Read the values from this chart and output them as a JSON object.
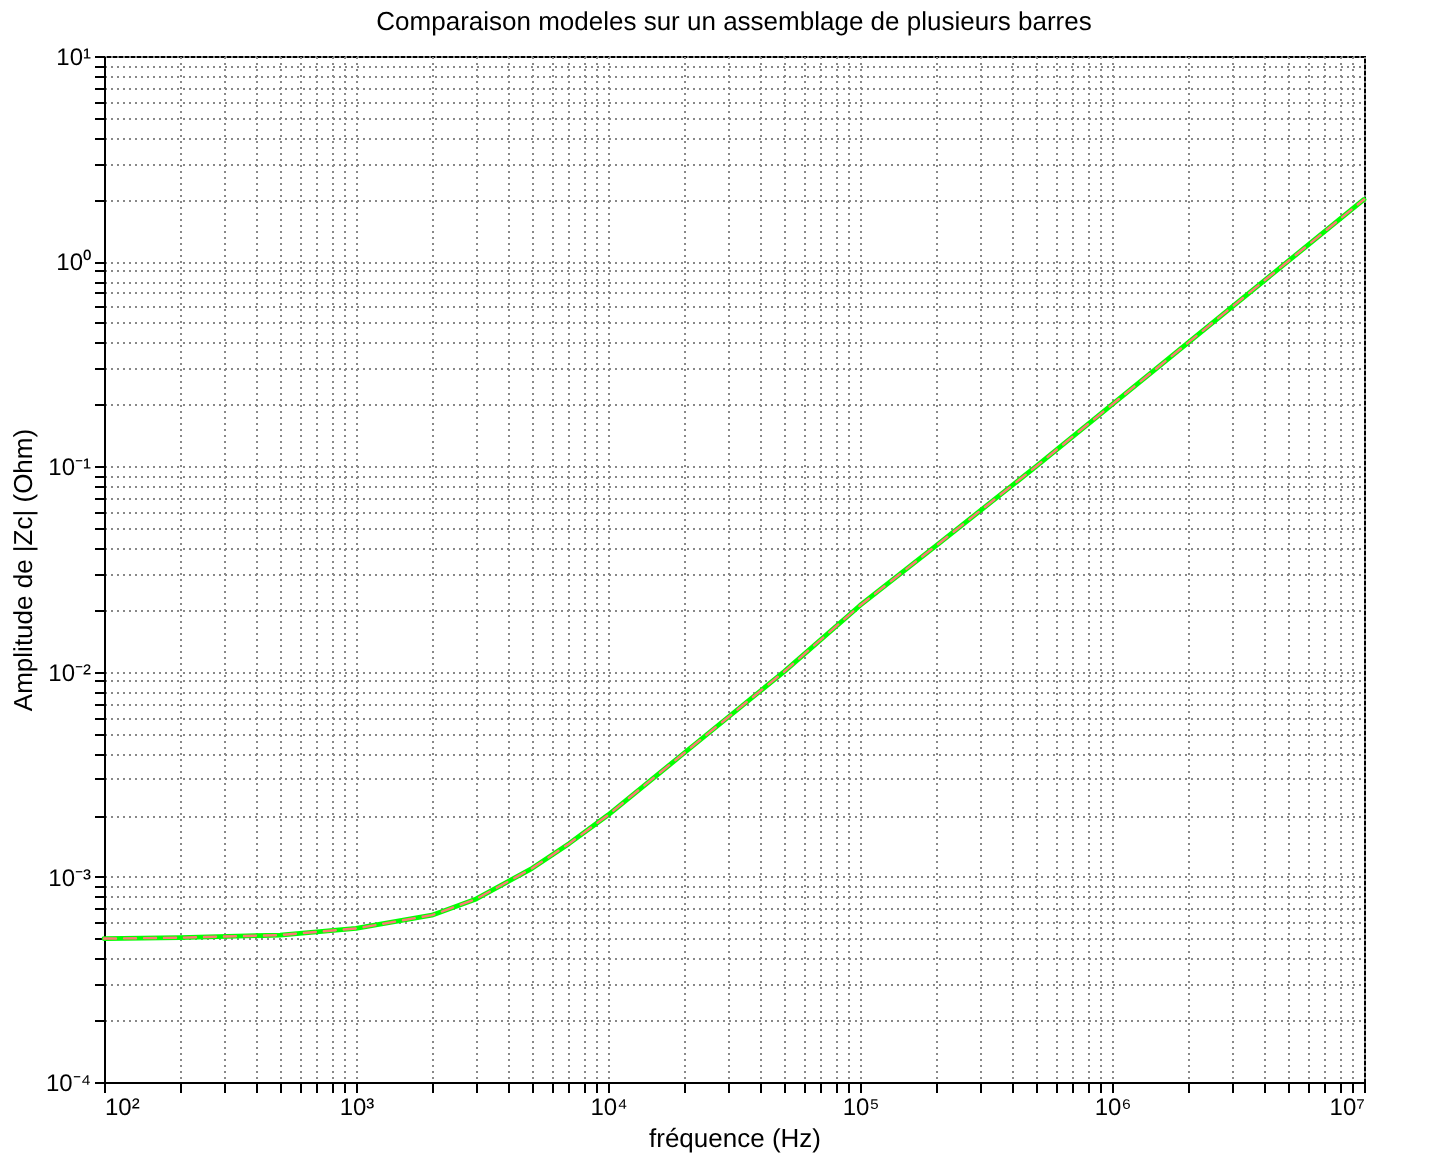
{
  "chart_data": {
    "type": "line",
    "title": "Comparaison modeles sur un assemblage de plusieurs barres",
    "xlabel": "fréquence (Hz)",
    "ylabel": "Amplitude de |Zc| (Ohm)",
    "log": "xy",
    "grid": true,
    "x": [
      100,
      200,
      500,
      1000,
      2000,
      3000,
      5000,
      7000,
      10000,
      20000,
      50000,
      100000,
      200000,
      500000,
      1000000,
      2000000,
      5000000,
      10000000
    ],
    "series": [
      {
        "color": "#00ff00",
        "line_style": "solid",
        "values": [
          0.0005,
          0.000505,
          0.00052,
          0.00056,
          0.00065,
          0.00078,
          0.0011,
          0.00145,
          0.002,
          0.004,
          0.01,
          0.021,
          0.041,
          0.1,
          0.2,
          0.4,
          1,
          2
        ]
      },
      {
        "color": "#ff7777",
        "line_style": "dashed",
        "values": [
          0.0005,
          0.000505,
          0.00052,
          0.00056,
          0.00065,
          0.00078,
          0.0011,
          0.00145,
          0.002,
          0.004,
          0.01,
          0.021,
          0.041,
          0.1,
          0.2,
          0.4,
          1,
          2
        ]
      }
    ],
    "xlim": [
      100,
      10000000
    ],
    "xticks": [
      {
        "value": 100,
        "label": "10²"
      },
      {
        "value": 200,
        "label": null
      },
      {
        "value": 300,
        "label": null
      },
      {
        "value": 400,
        "label": null
      },
      {
        "value": 500,
        "label": null
      },
      {
        "value": 600,
        "label": null
      },
      {
        "value": 700,
        "label": null
      },
      {
        "value": 800,
        "label": null
      },
      {
        "value": 900,
        "label": null
      },
      {
        "value": 1000,
        "label": "10³"
      },
      {
        "value": 2000,
        "label": null
      },
      {
        "value": 3000,
        "label": null
      },
      {
        "value": 4000,
        "label": null
      },
      {
        "value": 5000,
        "label": null
      },
      {
        "value": 6000,
        "label": null
      },
      {
        "value": 7000,
        "label": null
      },
      {
        "value": 8000,
        "label": null
      },
      {
        "value": 9000,
        "label": null
      },
      {
        "value": 10000,
        "label": "10⁴"
      },
      {
        "value": 20000,
        "label": null
      },
      {
        "value": 30000,
        "label": null
      },
      {
        "value": 40000,
        "label": null
      },
      {
        "value": 50000,
        "label": null
      },
      {
        "value": 60000,
        "label": null
      },
      {
        "value": 70000,
        "label": null
      },
      {
        "value": 80000,
        "label": null
      },
      {
        "value": 90000,
        "label": null
      },
      {
        "value": 100000,
        "label": "10⁵"
      },
      {
        "value": 200000,
        "label": null
      },
      {
        "value": 300000,
        "label": null
      },
      {
        "value": 400000,
        "label": null
      },
      {
        "value": 500000,
        "label": null
      },
      {
        "value": 600000,
        "label": null
      },
      {
        "value": 700000,
        "label": null
      },
      {
        "value": 800000,
        "label": null
      },
      {
        "value": 900000,
        "label": null
      },
      {
        "value": 1000000,
        "label": "10⁶"
      },
      {
        "value": 2000000,
        "label": null
      },
      {
        "value": 3000000,
        "label": null
      },
      {
        "value": 4000000,
        "label": null
      },
      {
        "value": 5000000,
        "label": null
      },
      {
        "value": 6000000,
        "label": null
      },
      {
        "value": 7000000,
        "label": null
      },
      {
        "value": 8000000,
        "label": null
      },
      {
        "value": 9000000,
        "label": null
      },
      {
        "value": 10000000,
        "label": "10⁷"
      }
    ],
    "ylim": [
      0.0001,
      10
    ],
    "yticks": [
      {
        "value": 0.0001,
        "label": "10⁻⁴"
      },
      {
        "value": 0.0002,
        "label": null
      },
      {
        "value": 0.0003,
        "label": null
      },
      {
        "value": 0.0004,
        "label": null
      },
      {
        "value": 0.0005,
        "label": null
      },
      {
        "value": 0.0006,
        "label": null
      },
      {
        "value": 0.0007,
        "label": null
      },
      {
        "value": 0.0008,
        "label": null
      },
      {
        "value": 0.0009,
        "label": null
      },
      {
        "value": 0.001,
        "label": "10⁻³"
      },
      {
        "value": 0.002,
        "label": null
      },
      {
        "value": 0.003,
        "label": null
      },
      {
        "value": 0.004,
        "label": null
      },
      {
        "value": 0.005,
        "label": null
      },
      {
        "value": 0.006,
        "label": null
      },
      {
        "value": 0.007,
        "label": null
      },
      {
        "value": 0.008,
        "label": null
      },
      {
        "value": 0.009,
        "label": null
      },
      {
        "value": 0.01,
        "label": "10⁻²"
      },
      {
        "value": 0.02,
        "label": null
      },
      {
        "value": 0.03,
        "label": null
      },
      {
        "value": 0.04,
        "label": null
      },
      {
        "value": 0.05,
        "label": null
      },
      {
        "value": 0.06,
        "label": null
      },
      {
        "value": 0.07,
        "label": null
      },
      {
        "value": 0.08,
        "label": null
      },
      {
        "value": 0.09,
        "label": null
      },
      {
        "value": 0.1,
        "label": "10⁻¹"
      },
      {
        "value": 0.2,
        "label": null
      },
      {
        "value": 0.3,
        "label": null
      },
      {
        "value": 0.4,
        "label": null
      },
      {
        "value": 0.5,
        "label": null
      },
      {
        "value": 0.6,
        "label": null
      },
      {
        "value": 0.7,
        "label": null
      },
      {
        "value": 0.8,
        "label": null
      },
      {
        "value": 0.9,
        "label": null
      },
      {
        "value": 1,
        "label": "10⁰"
      },
      {
        "value": 2,
        "label": null
      },
      {
        "value": 3,
        "label": null
      },
      {
        "value": 4,
        "label": null
      },
      {
        "value": 5,
        "label": null
      },
      {
        "value": 6,
        "label": null
      },
      {
        "value": 7,
        "label": null
      },
      {
        "value": 8,
        "label": null
      },
      {
        "value": 9,
        "label": null
      },
      {
        "value": 10,
        "label": "10¹"
      }
    ]
  }
}
